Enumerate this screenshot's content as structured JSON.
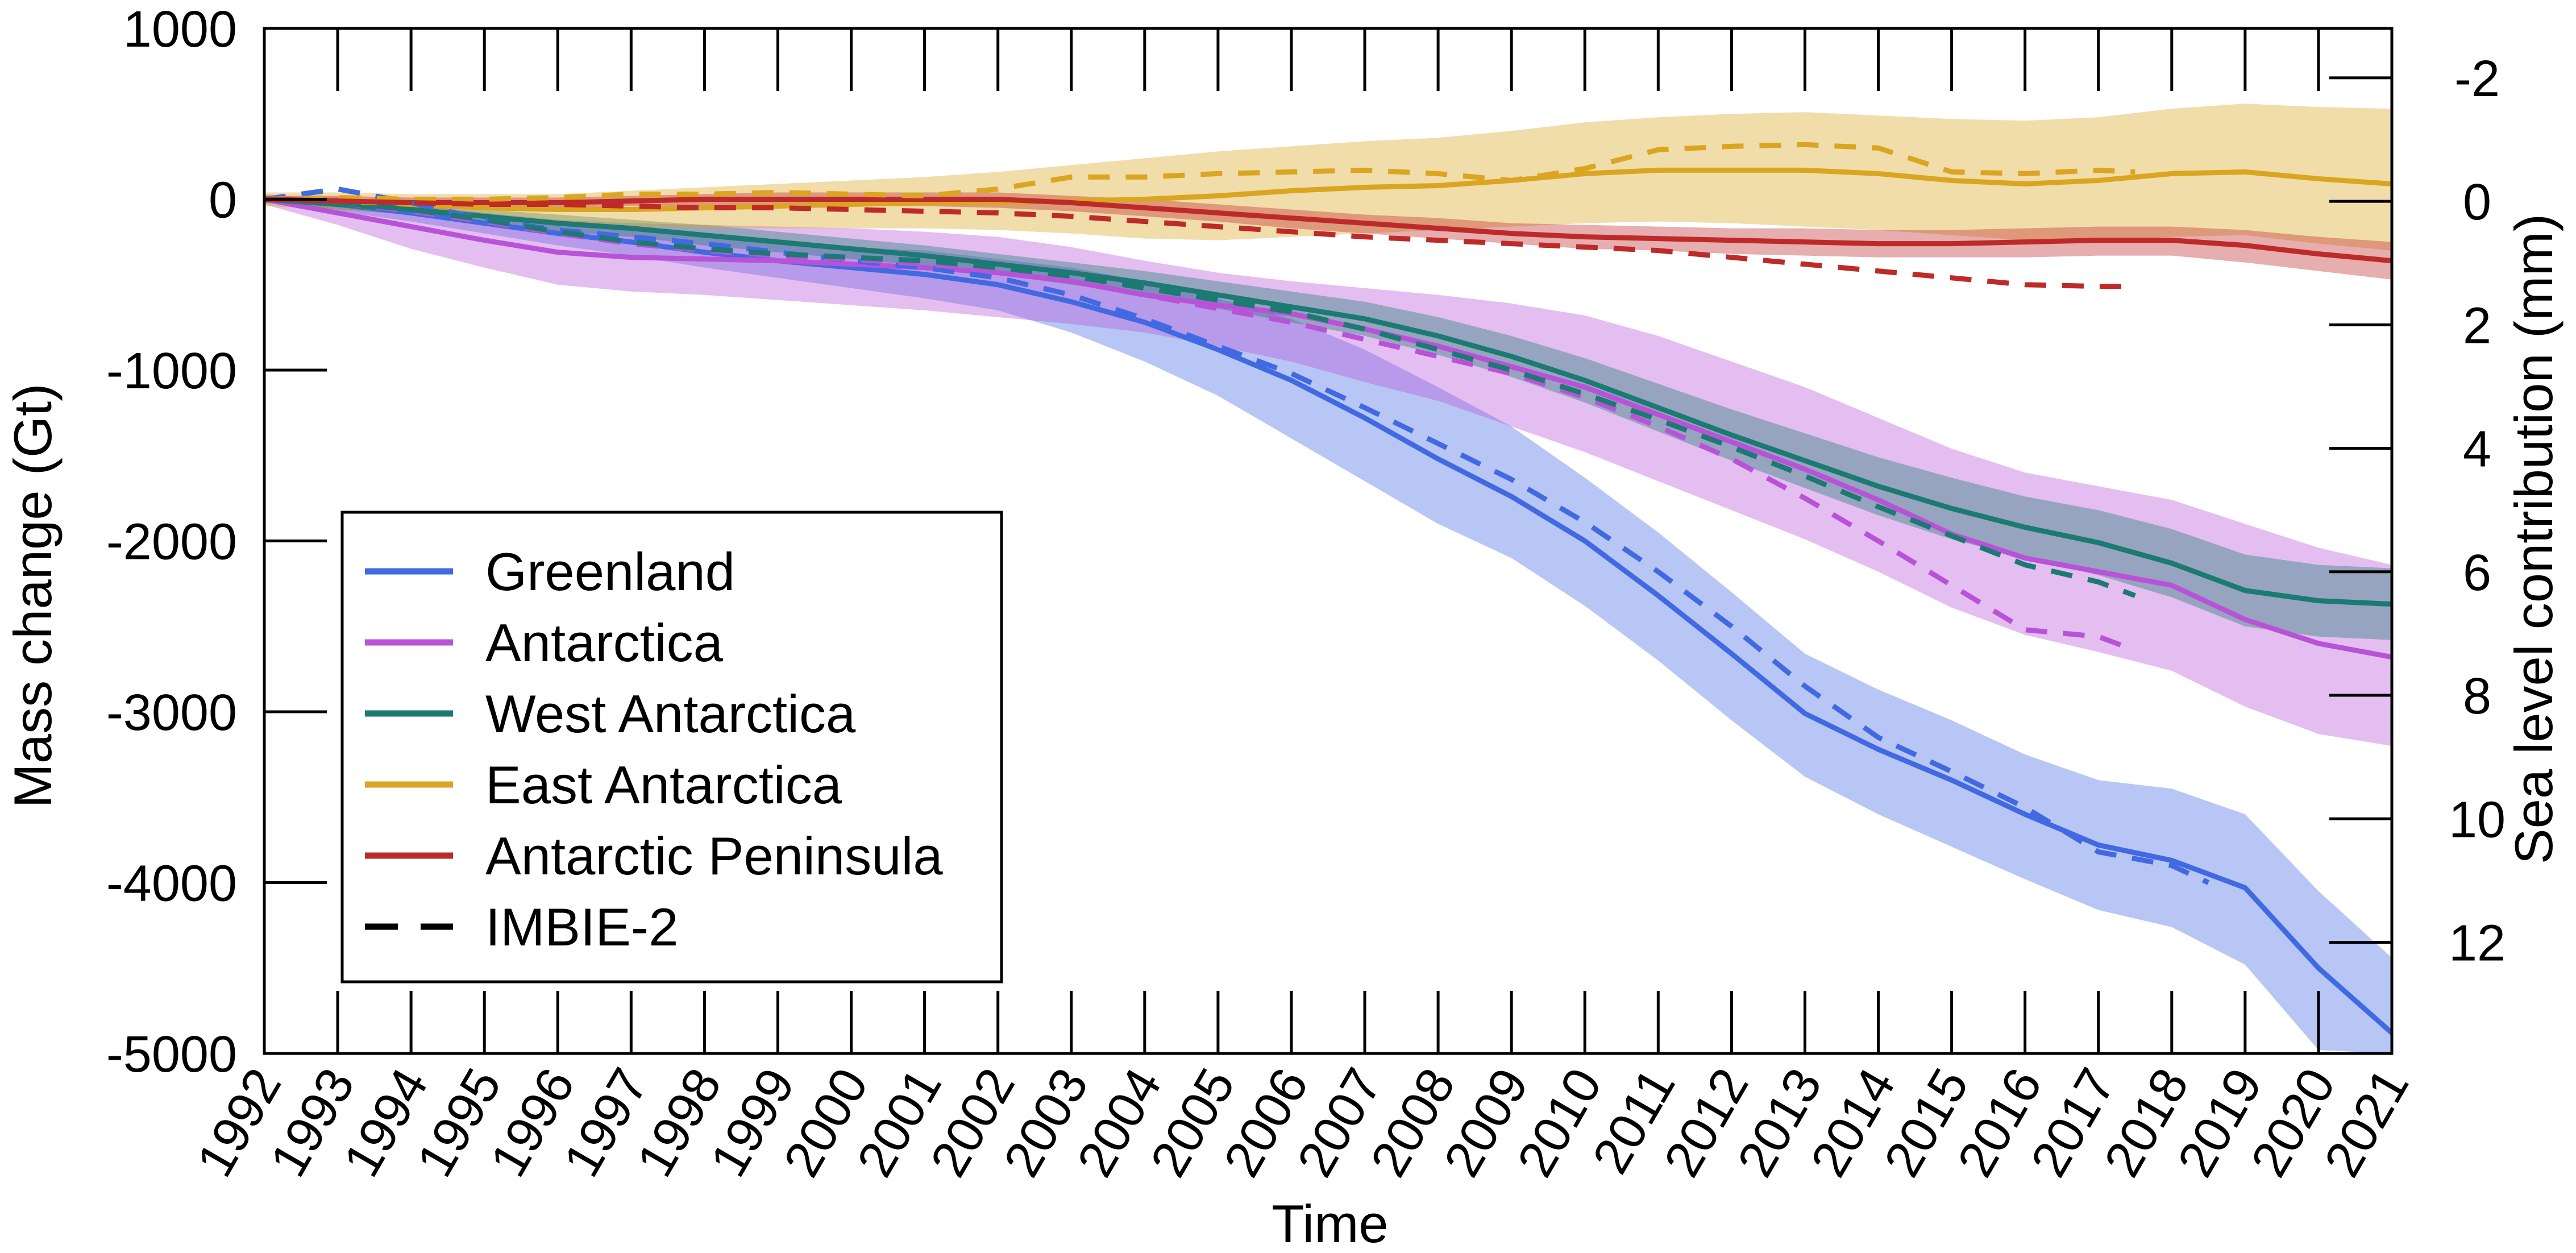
{
  "chart_data": {
    "type": "line",
    "xlabel": "Time",
    "ylabel": "Mass change (Gt)",
    "y2label": "Sea level contribution (mm)",
    "xlim": [
      1992,
      2021
    ],
    "ylim": [
      -5000,
      1000
    ],
    "y2lim": [
      13.8,
      -2.8
    ],
    "x_ticks": [
      "1992",
      "1993",
      "1994",
      "1995",
      "1996",
      "1997",
      "1998",
      "1999",
      "2000",
      "2001",
      "2002",
      "2003",
      "2004",
      "2005",
      "2006",
      "2007",
      "2008",
      "2009",
      "2010",
      "2011",
      "2012",
      "2013",
      "2014",
      "2015",
      "2016",
      "2017",
      "2018",
      "2019",
      "2020",
      "2021"
    ],
    "y_ticks": [
      "1000",
      "0",
      "-1000",
      "-2000",
      "-3000",
      "-4000",
      "-5000"
    ],
    "y2_ticks": [
      "-2",
      "0",
      "2",
      "4",
      "6",
      "8",
      "10",
      "12"
    ],
    "grid": false,
    "legend_position": "lower-left",
    "series": [
      {
        "name": "Greenland",
        "color": "#4169e1",
        "x": [
          1992,
          1993,
          1994,
          1995,
          1996,
          1997,
          1998,
          1999,
          2000,
          2001,
          2002,
          2003,
          2004,
          2005,
          2006,
          2007,
          2008,
          2009,
          2010,
          2011,
          2012,
          2013,
          2014,
          2015,
          2016,
          2017,
          2018,
          2019,
          2020,
          2021
        ],
        "values": [
          0,
          -30,
          -80,
          -140,
          -200,
          -250,
          -310,
          -360,
          -400,
          -440,
          -500,
          -600,
          -720,
          -880,
          -1060,
          -1280,
          -1520,
          -1740,
          -2000,
          -2320,
          -2660,
          -3010,
          -3220,
          -3400,
          -3600,
          -3780,
          -3870,
          -4030,
          -4500,
          -4880
        ],
        "upper": [
          20,
          10,
          -30,
          -80,
          -130,
          -170,
          -220,
          -260,
          -280,
          -300,
          -350,
          -400,
          -480,
          -580,
          -700,
          -880,
          -1100,
          -1330,
          -1630,
          -1950,
          -2300,
          -2660,
          -2870,
          -3050,
          -3250,
          -3400,
          -3450,
          -3600,
          -4050,
          -4440
        ],
        "lower": [
          -20,
          -70,
          -130,
          -200,
          -270,
          -330,
          -400,
          -460,
          -520,
          -580,
          -650,
          -780,
          -950,
          -1150,
          -1400,
          -1650,
          -1900,
          -2100,
          -2380,
          -2700,
          -3050,
          -3380,
          -3600,
          -3790,
          -3980,
          -4160,
          -4260,
          -4480,
          -4980,
          -5000
        ]
      },
      {
        "name": "Antarctica",
        "color": "#b853d8",
        "x": [
          1992,
          1993,
          1994,
          1995,
          1996,
          1997,
          1998,
          1999,
          2000,
          2001,
          2002,
          2003,
          2004,
          2005,
          2006,
          2007,
          2008,
          2009,
          2010,
          2011,
          2012,
          2013,
          2014,
          2015,
          2016,
          2017,
          2018,
          2019,
          2020,
          2021
        ],
        "values": [
          0,
          -80,
          -160,
          -240,
          -310,
          -340,
          -350,
          -360,
          -380,
          -400,
          -430,
          -480,
          -560,
          -620,
          -670,
          -760,
          -860,
          -980,
          -1100,
          -1260,
          -1420,
          -1580,
          -1760,
          -1960,
          -2100,
          -2180,
          -2260,
          -2460,
          -2600,
          -2680
        ],
        "upper": [
          30,
          -10,
          -40,
          -80,
          -120,
          -140,
          -150,
          -160,
          -170,
          -190,
          -220,
          -280,
          -360,
          -430,
          -480,
          -520,
          -560,
          -610,
          -680,
          -800,
          -950,
          -1100,
          -1280,
          -1460,
          -1600,
          -1680,
          -1760,
          -1900,
          -2040,
          -2140
        ],
        "lower": [
          -30,
          -150,
          -290,
          -400,
          -500,
          -540,
          -560,
          -590,
          -620,
          -650,
          -690,
          -730,
          -780,
          -860,
          -950,
          -1070,
          -1180,
          -1330,
          -1480,
          -1650,
          -1820,
          -1990,
          -2180,
          -2390,
          -2550,
          -2650,
          -2760,
          -2970,
          -3130,
          -3200
        ]
      },
      {
        "name": "West Antarctica",
        "color": "#1b7a72",
        "x": [
          1992,
          1993,
          1994,
          1995,
          1996,
          1997,
          1998,
          1999,
          2000,
          2001,
          2002,
          2003,
          2004,
          2005,
          2006,
          2007,
          2008,
          2009,
          2010,
          2011,
          2012,
          2013,
          2014,
          2015,
          2016,
          2017,
          2018,
          2019,
          2020,
          2021
        ],
        "values": [
          0,
          -30,
          -60,
          -100,
          -140,
          -170,
          -210,
          -250,
          -290,
          -330,
          -380,
          -430,
          -490,
          -560,
          -630,
          -700,
          -800,
          -920,
          -1060,
          -1220,
          -1380,
          -1530,
          -1680,
          -1810,
          -1920,
          -2010,
          -2130,
          -2290,
          -2350,
          -2370
        ],
        "upper": [
          20,
          0,
          -30,
          -60,
          -90,
          -120,
          -150,
          -190,
          -230,
          -270,
          -320,
          -370,
          -420,
          -480,
          -540,
          -600,
          -690,
          -800,
          -930,
          -1080,
          -1230,
          -1370,
          -1510,
          -1630,
          -1740,
          -1820,
          -1930,
          -2080,
          -2140,
          -2160
        ],
        "lower": [
          -20,
          -60,
          -90,
          -140,
          -190,
          -220,
          -270,
          -310,
          -350,
          -390,
          -440,
          -500,
          -560,
          -640,
          -720,
          -800,
          -910,
          -1040,
          -1190,
          -1360,
          -1530,
          -1690,
          -1850,
          -1990,
          -2100,
          -2200,
          -2330,
          -2500,
          -2560,
          -2580
        ]
      },
      {
        "name": "East Antarctica",
        "color": "#daa520",
        "x": [
          1992,
          1993,
          1994,
          1995,
          1996,
          1997,
          1998,
          1999,
          2000,
          2001,
          2002,
          2003,
          2004,
          2005,
          2006,
          2007,
          2008,
          2009,
          2010,
          2011,
          2012,
          2013,
          2014,
          2015,
          2016,
          2017,
          2018,
          2019,
          2020,
          2021
        ],
        "values": [
          0,
          -10,
          -30,
          -50,
          -60,
          -60,
          -50,
          -40,
          -30,
          -20,
          -20,
          -10,
          0,
          20,
          50,
          70,
          80,
          110,
          150,
          170,
          170,
          170,
          150,
          110,
          90,
          110,
          150,
          160,
          120,
          90
        ],
        "upper": [
          40,
          40,
          30,
          30,
          30,
          50,
          70,
          90,
          110,
          130,
          160,
          200,
          240,
          280,
          310,
          340,
          360,
          400,
          450,
          480,
          500,
          510,
          490,
          470,
          460,
          480,
          530,
          560,
          540,
          530
        ],
        "lower": [
          -40,
          -60,
          -90,
          -120,
          -140,
          -160,
          -170,
          -170,
          -170,
          -170,
          -180,
          -200,
          -230,
          -240,
          -220,
          -200,
          -180,
          -160,
          -140,
          -130,
          -140,
          -160,
          -180,
          -210,
          -240,
          -240,
          -220,
          -210,
          -260,
          -300
        ]
      },
      {
        "name": "Antarctic Peninsula",
        "color": "#be2a2a",
        "x": [
          1992,
          1993,
          1994,
          1995,
          1996,
          1997,
          1998,
          1999,
          2000,
          2001,
          2002,
          2003,
          2004,
          2005,
          2006,
          2007,
          2008,
          2009,
          2010,
          2011,
          2012,
          2013,
          2014,
          2015,
          2016,
          2017,
          2018,
          2019,
          2020,
          2021
        ],
        "values": [
          0,
          -10,
          -20,
          -20,
          -20,
          -10,
          0,
          0,
          0,
          0,
          0,
          -20,
          -50,
          -80,
          -110,
          -140,
          -170,
          -200,
          -220,
          -230,
          -240,
          -250,
          -260,
          -260,
          -250,
          -240,
          -240,
          -270,
          -320,
          -360
        ],
        "upper": [
          20,
          20,
          10,
          10,
          10,
          20,
          30,
          40,
          40,
          40,
          40,
          20,
          0,
          -30,
          -60,
          -90,
          -110,
          -140,
          -150,
          -160,
          -170,
          -170,
          -180,
          -180,
          -170,
          -160,
          -160,
          -180,
          -220,
          -250
        ],
        "lower": [
          -20,
          -40,
          -50,
          -50,
          -50,
          -40,
          -40,
          -40,
          -40,
          -40,
          -50,
          -70,
          -100,
          -130,
          -170,
          -200,
          -230,
          -260,
          -290,
          -300,
          -320,
          -330,
          -340,
          -340,
          -340,
          -330,
          -330,
          -370,
          -420,
          -470
        ]
      }
    ],
    "imbie2_series": [
      {
        "name": "Greenland",
        "color": "#4169e1",
        "x": [
          1992,
          1993,
          1994,
          1995,
          1996,
          1997,
          1998,
          1999,
          2000,
          2001,
          2002,
          2003,
          2004,
          2005,
          2006,
          2007,
          2008,
          2009,
          2010,
          2011,
          2012,
          2013,
          2014,
          2015,
          2016,
          2017,
          2018,
          2018.5
        ],
        "values": [
          0,
          60,
          -20,
          -120,
          -180,
          -220,
          -260,
          -310,
          -360,
          -400,
          -460,
          -560,
          -700,
          -860,
          -1020,
          -1220,
          -1430,
          -1640,
          -1890,
          -2180,
          -2500,
          -2850,
          -3150,
          -3350,
          -3560,
          -3820,
          -3900,
          -4000
        ]
      },
      {
        "name": "Antarctica",
        "color": "#b853d8",
        "x": [
          1992,
          1993,
          1994,
          1995,
          1996,
          1997,
          1998,
          1999,
          2000,
          2001,
          2002,
          2003,
          2004,
          2005,
          2006,
          2007,
          2008,
          2009,
          2010,
          2011,
          2012,
          2013,
          2014,
          2015,
          2016,
          2017,
          2017.5
        ],
        "values": [
          0,
          -20,
          -70,
          -130,
          -200,
          -260,
          -300,
          -330,
          -350,
          -380,
          -420,
          -480,
          -560,
          -640,
          -720,
          -820,
          -920,
          -1020,
          -1160,
          -1330,
          -1520,
          -1750,
          -2000,
          -2260,
          -2520,
          -2560,
          -2640
        ]
      },
      {
        "name": "West Antarctica",
        "color": "#1b7a72",
        "x": [
          1992,
          1993,
          1994,
          1995,
          1996,
          1997,
          1998,
          1999,
          2000,
          2001,
          2002,
          2003,
          2004,
          2005,
          2006,
          2007,
          2008,
          2009,
          2010,
          2011,
          2012,
          2013,
          2014,
          2015,
          2016,
          2017,
          2017.5
        ],
        "values": [
          0,
          -20,
          -60,
          -120,
          -190,
          -250,
          -290,
          -320,
          -340,
          -360,
          -400,
          -450,
          -520,
          -590,
          -660,
          -760,
          -880,
          -1000,
          -1140,
          -1290,
          -1450,
          -1620,
          -1800,
          -1970,
          -2140,
          -2240,
          -2320
        ]
      },
      {
        "name": "East Antarctica",
        "color": "#daa520",
        "x": [
          1992,
          1993,
          1994,
          1995,
          1996,
          1997,
          1998,
          1999,
          2000,
          2001,
          2002,
          2003,
          2004,
          2005,
          2006,
          2007,
          2008,
          2009,
          2010,
          2011,
          2012,
          2013,
          2014,
          2015,
          2016,
          2017,
          2017.5
        ],
        "values": [
          0,
          10,
          0,
          0,
          10,
          30,
          30,
          40,
          30,
          20,
          60,
          130,
          130,
          150,
          160,
          170,
          150,
          110,
          180,
          290,
          310,
          320,
          300,
          160,
          150,
          170,
          160
        ]
      },
      {
        "name": "Antarctic Peninsula",
        "color": "#be2a2a",
        "x": [
          1992,
          1993,
          1994,
          1995,
          1996,
          1997,
          1998,
          1999,
          2000,
          2001,
          2002,
          2003,
          2004,
          2005,
          2006,
          2007,
          2008,
          2009,
          2010,
          2011,
          2012,
          2013,
          2014,
          2015,
          2016,
          2017,
          2017.5
        ],
        "values": [
          0,
          -10,
          -20,
          -30,
          -30,
          -40,
          -50,
          -50,
          -60,
          -70,
          -80,
          -100,
          -130,
          -160,
          -190,
          -220,
          -240,
          -260,
          -280,
          -300,
          -340,
          -380,
          -420,
          -460,
          -500,
          -510,
          -510
        ]
      }
    ],
    "legend_entries": [
      {
        "label": "Greenland",
        "color": "#4169e1",
        "style": "solid"
      },
      {
        "label": "Antarctica",
        "color": "#b853d8",
        "style": "solid"
      },
      {
        "label": "West Antarctica",
        "color": "#1b7a72",
        "style": "solid"
      },
      {
        "label": "East Antarctica",
        "color": "#daa520",
        "style": "solid"
      },
      {
        "label": "Antarctic Peninsula",
        "color": "#be2a2a",
        "style": "solid"
      },
      {
        "label": "IMBIE-2",
        "color": "#000000",
        "style": "dashed"
      }
    ]
  }
}
